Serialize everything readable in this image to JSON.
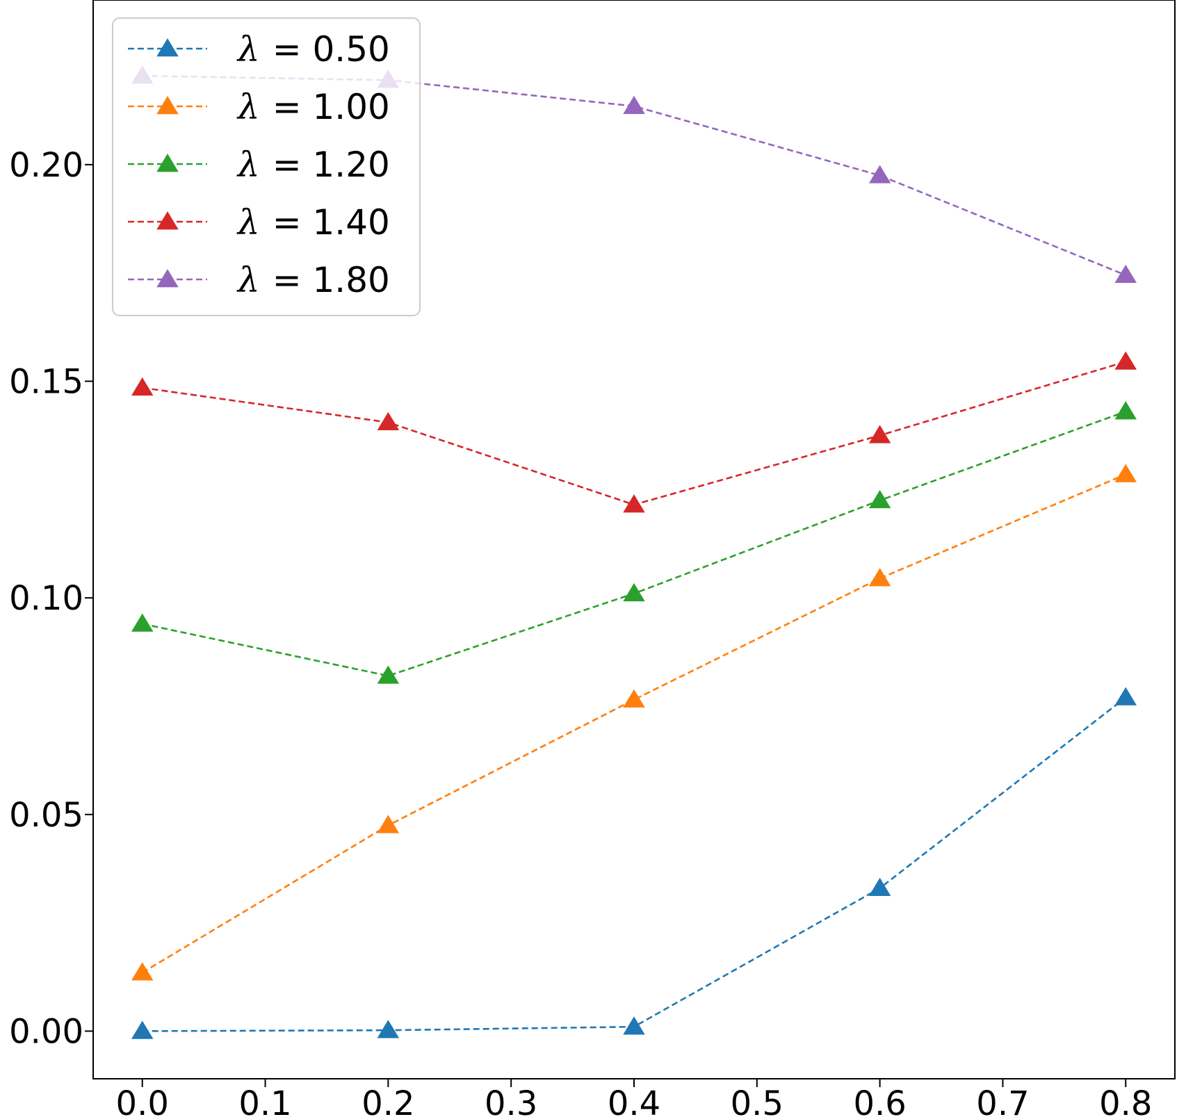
{
  "chart_data": {
    "type": "line",
    "title": "",
    "xlabel": "",
    "ylabel": "",
    "x": [
      0.0,
      0.2,
      0.4,
      0.6,
      0.8
    ],
    "xlim": [
      -0.04,
      0.84
    ],
    "ylim": [
      -0.011,
      0.238
    ],
    "xticks": [
      "0.0",
      "0.1",
      "0.2",
      "0.3",
      "0.4",
      "0.5",
      "0.6",
      "0.7",
      "0.8"
    ],
    "xtick_values": [
      0.0,
      0.1,
      0.2,
      0.3,
      0.4,
      0.5,
      0.6,
      0.7,
      0.8
    ],
    "yticks": [
      "0.00",
      "0.05",
      "0.10",
      "0.15",
      "0.20"
    ],
    "ytick_values": [
      0.0,
      0.05,
      0.1,
      0.15,
      0.2
    ],
    "grid": false,
    "legend_position": "top-left",
    "line_style": "dashed",
    "marker": "triangle-up",
    "series": [
      {
        "name": "λ = 0.50",
        "lambda": "λ",
        "value_text": "= 0.50",
        "color": "#1f77b4",
        "values": [
          0.0,
          0.0002,
          0.001,
          0.033,
          0.077
        ]
      },
      {
        "name": "λ = 1.00",
        "lambda": "λ",
        "value_text": "= 1.00",
        "color": "#ff7f0e",
        "values": [
          0.0135,
          0.0475,
          0.0765,
          0.1045,
          0.1285
        ]
      },
      {
        "name": "λ = 1.20",
        "lambda": "λ",
        "value_text": "= 1.20",
        "color": "#2ca02c",
        "values": [
          0.094,
          0.082,
          0.101,
          0.1225,
          0.143
        ]
      },
      {
        "name": "λ = 1.40",
        "lambda": "λ",
        "value_text": "= 1.40",
        "color": "#d62728",
        "values": [
          0.1485,
          0.1405,
          0.1215,
          0.1375,
          0.1545
        ]
      },
      {
        "name": "λ = 1.80",
        "lambda": "λ",
        "value_text": "= 1.80",
        "color": "#9467bd",
        "values": [
          0.2205,
          0.2195,
          0.2135,
          0.1975,
          0.1745
        ]
      }
    ]
  }
}
